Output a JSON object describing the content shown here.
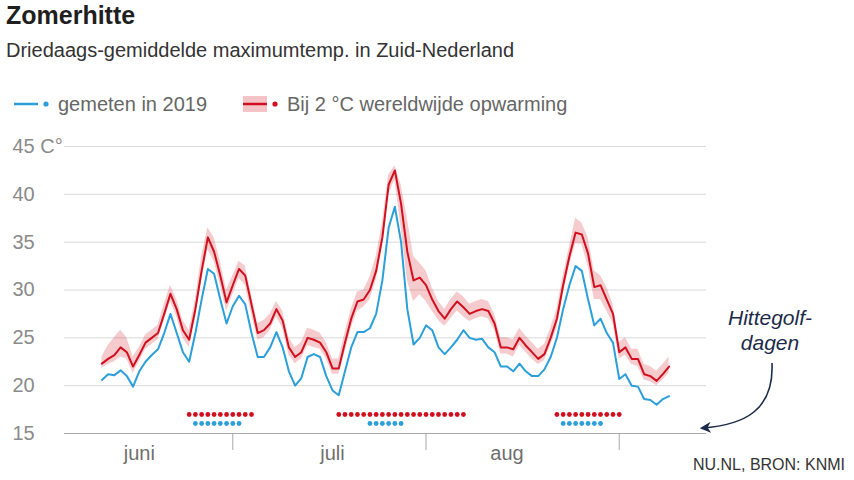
{
  "chart_data": {
    "type": "line",
    "title": "Zomerhitte",
    "subtitle": "Driedaags-gemiddelde maximumtemp. in Zuid-Nederland",
    "source": "NU.NL, BRON: KNMI",
    "annotation": "Hittegolf-dagen",
    "x": [
      10,
      11,
      12,
      13,
      14,
      15,
      16,
      17,
      18,
      19,
      20,
      21,
      22,
      23,
      24,
      25,
      26,
      27,
      28,
      29,
      30,
      31,
      32,
      33,
      34,
      35,
      36,
      37,
      38,
      39,
      40,
      41,
      42,
      43,
      44,
      45,
      46,
      47,
      48,
      49,
      50,
      51,
      52,
      53,
      54,
      55,
      56,
      57,
      58,
      59,
      60,
      61,
      62,
      63,
      64,
      65,
      66,
      67,
      68,
      69,
      70,
      71,
      72,
      73,
      74,
      75,
      76,
      77,
      78,
      79,
      80,
      81,
      82,
      83,
      84,
      85,
      86,
      87,
      88,
      89,
      90,
      91,
      92,
      93,
      94,
      95,
      96,
      97,
      98,
      99,
      100,
      101
    ],
    "xlim": [
      4,
      107
    ],
    "xticks": [
      {
        "value": 16,
        "label": "juni"
      },
      {
        "value": 47,
        "label": "juli"
      },
      {
        "value": 75,
        "label": "aug"
      }
    ],
    "month_boundaries": [
      31,
      62,
      93
    ],
    "ylim": [
      15,
      45
    ],
    "yticks": [
      15,
      20,
      25,
      30,
      35,
      40,
      {
        "value": 45,
        "label": "45 C°"
      }
    ],
    "grid": true,
    "series": [
      {
        "name": "gemeten in 2019",
        "color": "#2b9fd9",
        "values": [
          20.6,
          21.2,
          21.1,
          21.6,
          21.0,
          19.9,
          21.5,
          22.5,
          23.2,
          23.8,
          25.5,
          27.5,
          25.5,
          23.5,
          22.5,
          25.5,
          29.0,
          32.2,
          31.7,
          29.0,
          26.5,
          28.3,
          29.4,
          28.5,
          25.5,
          23.0,
          23.0,
          24.0,
          25.6,
          24.0,
          21.5,
          20.0,
          20.8,
          23.0,
          23.3,
          23.0,
          21.0,
          19.5,
          19.0,
          21.5,
          24.0,
          25.6,
          25.6,
          26.0,
          27.5,
          31.0,
          36.5,
          38.7,
          35.0,
          28.0,
          24.3,
          25.0,
          26.3,
          25.8,
          24.0,
          23.3,
          24.0,
          24.8,
          25.8,
          25.0,
          24.8,
          24.9,
          24.0,
          23.5,
          22.0,
          22.0,
          21.5,
          22.3,
          21.5,
          21.0,
          21.0,
          21.7,
          23.0,
          25.0,
          28.0,
          30.5,
          32.5,
          32.0,
          29.0,
          26.3,
          27.0,
          25.5,
          24.5,
          20.7,
          21.2,
          20.0,
          19.9,
          18.6,
          18.5,
          18.0,
          18.6,
          18.9
        ],
        "heatwave_days": [
          25,
          26,
          27,
          28,
          29,
          30,
          31,
          32,
          53,
          54,
          55,
          56,
          57,
          58,
          84,
          85,
          86,
          87,
          88,
          89,
          90
        ]
      },
      {
        "name": "Bij 2 °C wereldwijde opwarming",
        "color": "#d0101e",
        "values": [
          22.3,
          22.8,
          23.2,
          24.0,
          23.5,
          22.0,
          23.2,
          24.5,
          25.0,
          25.5,
          27.5,
          29.6,
          28.0,
          25.8,
          24.8,
          28.0,
          32.0,
          35.5,
          34.0,
          31.5,
          28.7,
          30.5,
          32.2,
          31.5,
          28.5,
          25.5,
          25.8,
          26.5,
          28.0,
          26.8,
          24.0,
          23.0,
          23.5,
          25.0,
          24.8,
          24.5,
          23.5,
          21.8,
          21.8,
          24.5,
          27.0,
          28.8,
          29.0,
          30.0,
          32.0,
          35.5,
          41.0,
          42.5,
          39.0,
          34.0,
          31.0,
          31.3,
          30.5,
          29.0,
          27.8,
          27.0,
          28.0,
          28.8,
          28.2,
          27.5,
          27.8,
          28.0,
          27.8,
          26.5,
          24.0,
          24.0,
          23.8,
          25.0,
          24.2,
          23.5,
          22.8,
          23.3,
          25.0,
          27.0,
          30.5,
          33.5,
          36.0,
          35.8,
          33.8,
          30.3,
          30.5,
          29.0,
          27.5,
          23.5,
          24.0,
          22.8,
          22.8,
          21.2,
          21.0,
          20.5,
          21.2,
          22.0
        ],
        "range_low": [
          21.8,
          22.2,
          22.5,
          23.0,
          22.8,
          21.3,
          22.5,
          23.8,
          24.3,
          24.8,
          26.8,
          28.8,
          27.2,
          25.0,
          24.0,
          27.0,
          31.0,
          34.2,
          33.0,
          30.5,
          27.8,
          29.5,
          31.2,
          30.5,
          27.5,
          24.8,
          25.0,
          25.8,
          27.2,
          26.0,
          23.2,
          22.3,
          22.8,
          24.2,
          24.0,
          23.8,
          22.8,
          21.2,
          21.2,
          23.5,
          26.0,
          27.8,
          28.2,
          29.0,
          31.0,
          34.5,
          40.0,
          41.5,
          36.5,
          31.0,
          28.8,
          29.5,
          28.8,
          27.8,
          26.8,
          26.2,
          27.0,
          27.8,
          27.2,
          26.7,
          27.0,
          27.2,
          27.0,
          25.8,
          23.3,
          23.3,
          23.0,
          24.2,
          23.5,
          22.8,
          22.2,
          22.6,
          24.2,
          26.0,
          29.5,
          32.5,
          34.8,
          34.8,
          32.5,
          29.0,
          29.0,
          27.8,
          26.5,
          22.8,
          23.2,
          22.2,
          22.0,
          20.6,
          20.4,
          20.0,
          20.6,
          21.3
        ],
        "range_high": [
          23.0,
          24.2,
          25.0,
          25.8,
          25.0,
          23.0,
          24.0,
          25.3,
          25.8,
          26.3,
          28.5,
          30.5,
          29.0,
          26.8,
          25.8,
          29.0,
          33.5,
          36.5,
          35.5,
          33.0,
          30.0,
          31.5,
          33.0,
          32.5,
          29.5,
          26.5,
          26.8,
          27.5,
          28.8,
          27.8,
          25.0,
          24.0,
          24.5,
          26.0,
          25.8,
          25.5,
          24.5,
          22.8,
          22.8,
          25.5,
          28.0,
          29.8,
          30.0,
          31.3,
          33.5,
          37.0,
          42.0,
          43.0,
          41.0,
          37.5,
          33.5,
          32.8,
          32.0,
          30.2,
          28.8,
          28.0,
          29.0,
          29.8,
          29.3,
          28.5,
          28.8,
          29.0,
          28.8,
          27.5,
          25.0,
          25.0,
          24.8,
          26.0,
          25.2,
          24.5,
          23.8,
          24.3,
          26.0,
          28.0,
          31.5,
          34.5,
          37.5,
          37.0,
          35.5,
          32.0,
          31.5,
          30.3,
          28.5,
          24.5,
          25.0,
          23.8,
          23.8,
          22.2,
          22.0,
          21.5,
          22.2,
          23.0
        ],
        "heatwave_days": [
          24,
          25,
          26,
          27,
          28,
          29,
          30,
          31,
          32,
          33,
          34,
          48,
          49,
          50,
          51,
          52,
          53,
          54,
          55,
          56,
          57,
          58,
          59,
          60,
          61,
          62,
          63,
          64,
          65,
          66,
          67,
          68,
          83,
          84,
          85,
          86,
          87,
          88,
          89,
          90,
          91,
          92,
          93
        ]
      }
    ]
  }
}
